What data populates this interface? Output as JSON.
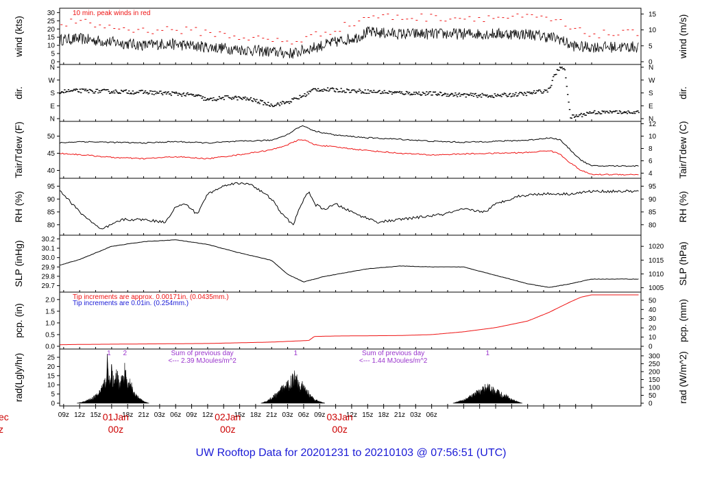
{
  "title": "UW Rooftop Data for 20201231  to  20210103 @ 07:56:51  (UTC)",
  "colors": {
    "black": "#000000",
    "red": "#ee1111",
    "blue": "#1a1ad6",
    "purple": "#9933cc",
    "day": "#cc0000"
  },
  "x_axis": {
    "hour_labels": [
      "09z",
      "12z",
      "15z",
      "18z",
      "21z",
      "03z",
      "06z",
      "09z",
      "12z",
      "15z",
      "18z",
      "21z",
      "03z",
      "06z",
      "09z",
      "12z",
      "15z",
      "18z",
      "21z",
      "03z",
      "06z"
    ],
    "day_labels": [
      {
        "top": "01Jan",
        "bottom": "00z"
      },
      {
        "top": "02Jan",
        "bottom": "00z"
      },
      {
        "top": "03Jan",
        "bottom": "00z"
      }
    ],
    "cut_off_left": {
      "top": "ec",
      "bottom": "z"
    }
  },
  "chart_data": [
    {
      "type": "line",
      "panel": "wind",
      "ylabel_left": "wind (kts)",
      "ylabel_right": "wind (m/s)",
      "yticks_left": [
        "0",
        "5",
        "10",
        "15",
        "20",
        "25",
        "30"
      ],
      "ylim_left": [
        0,
        31
      ],
      "yticks_right": [
        "0",
        "5",
        "10",
        "15"
      ],
      "annotation": "10 min. peak winds in red",
      "series": [
        {
          "name": "wind speed (kts)",
          "hours": [
            0,
            6,
            12,
            18,
            24,
            28,
            32,
            36,
            40,
            48,
            52,
            54,
            60,
            64,
            66,
            72,
            78,
            84,
            90,
            96,
            100,
            102,
            104,
            106,
            108
          ],
          "values": [
            13,
            13,
            14,
            12,
            10,
            11,
            10,
            9,
            8,
            6,
            5,
            7,
            12,
            15,
            18,
            17,
            17,
            17,
            17,
            17,
            15,
            14,
            10,
            9,
            9
          ]
        },
        {
          "name": "10 min. peak winds",
          "hours": [
            0,
            6,
            12,
            18,
            24,
            28,
            32,
            36,
            40,
            48,
            52,
            54,
            60,
            64,
            66,
            72,
            78,
            84,
            90,
            96,
            100,
            102,
            104,
            106,
            108
          ],
          "values": [
            22,
            23,
            24,
            21,
            19,
            20,
            19,
            18,
            16,
            13,
            12,
            14,
            20,
            24,
            28,
            27,
            27,
            27,
            27,
            27,
            26,
            24,
            20,
            18,
            17
          ]
        }
      ]
    },
    {
      "type": "scatter",
      "panel": "direction",
      "ylabel_left": "dir.",
      "ylabel_right": "dir.",
      "ytick_labels": [
        "N",
        "E",
        "S",
        "W",
        "N"
      ],
      "ylim": [
        0,
        360
      ],
      "series": [
        {
          "name": "wind direction (deg)",
          "hours": [
            0,
            6,
            12,
            18,
            24,
            30,
            34,
            36,
            40,
            44,
            48,
            51,
            54,
            56,
            60,
            66,
            72,
            78,
            84,
            90,
            96,
            100,
            101,
            102,
            103,
            104,
            106,
            108
          ],
          "values": [
            175,
            185,
            195,
            190,
            185,
            175,
            160,
            130,
            150,
            135,
            95,
            115,
            160,
            205,
            200,
            190,
            180,
            175,
            165,
            160,
            175,
            200,
            300,
            355,
            350,
            10,
            25,
            45
          ]
        }
      ]
    },
    {
      "type": "line",
      "panel": "temperature",
      "ylabel_left": "Tair/Tdew (F)",
      "ylabel_right": "Tair/Tdew (C)",
      "yticks_left": [
        "40",
        "45",
        "50"
      ],
      "ylim_left": [
        38.5,
        53.5
      ],
      "yticks_right": [
        "4",
        "6",
        "8",
        "10",
        "12"
      ],
      "series": [
        {
          "name": "Tair (F)",
          "hours": [
            0,
            6,
            12,
            18,
            24,
            30,
            36,
            42,
            48,
            51,
            53,
            54,
            56,
            60,
            66,
            72,
            78,
            84,
            90,
            96,
            100,
            102,
            104,
            106,
            108
          ],
          "values": [
            47,
            47.8,
            48.4,
            48.2,
            48,
            48.4,
            48,
            48.5,
            48.8,
            50.5,
            52.5,
            53,
            51.5,
            50.3,
            49.5,
            49.1,
            48.5,
            48.2,
            48.5,
            48.8,
            49.5,
            49,
            46,
            43,
            41.3
          ]
        },
        {
          "name": "Tdew (F)",
          "hours": [
            0,
            6,
            12,
            18,
            24,
            30,
            36,
            42,
            48,
            51,
            53,
            54,
            56,
            60,
            66,
            72,
            78,
            84,
            90,
            96,
            100,
            102,
            104,
            106,
            108
          ],
          "values": [
            45,
            45.2,
            44.6,
            43.8,
            43.4,
            44,
            43.4,
            44.6,
            46,
            47.5,
            48.8,
            49,
            47.5,
            46.8,
            45.8,
            45,
            44.5,
            44.8,
            45,
            45.2,
            45.8,
            44.8,
            42.2,
            40,
            38.8
          ]
        }
      ]
    },
    {
      "type": "line",
      "panel": "relative-humidity",
      "ylabel_left": "RH (%)",
      "ylabel_right": "RH (%)",
      "yticks": [
        "80",
        "85",
        "90",
        "95"
      ],
      "ylim": [
        77,
        97
      ],
      "series": [
        {
          "name": "RH (%)",
          "hours": [
            0,
            4,
            8,
            12,
            16,
            20,
            24,
            28,
            30,
            32,
            34,
            36,
            40,
            44,
            48,
            50,
            52,
            54,
            55,
            56,
            58,
            60,
            64,
            68,
            72,
            76,
            80,
            84,
            88,
            90,
            94,
            98,
            104,
            108
          ],
          "values": [
            92,
            91,
            94,
            85,
            78,
            82,
            82,
            81,
            87,
            88,
            84,
            92,
            96,
            96,
            90,
            84,
            80,
            90,
            93,
            88,
            86,
            88,
            84,
            81,
            82,
            83,
            84,
            86,
            85,
            88,
            91,
            92,
            92,
            93
          ]
        }
      ]
    },
    {
      "type": "line",
      "panel": "sea-level-pressure",
      "ylabel_left": "SLP (inHg)",
      "ylabel_right": "SLP (hPa)",
      "yticks_left": [
        "29.7",
        "29.8",
        "29.9",
        "30.0",
        "30.1",
        "30.2"
      ],
      "ylim_left": [
        29.66,
        30.21
      ],
      "yticks_right": [
        "1005",
        "1010",
        "1015",
        "1020"
      ],
      "series": [
        {
          "name": "SLP (inHg)",
          "hours": [
            0,
            6,
            12,
            18,
            24,
            30,
            36,
            42,
            48,
            51,
            54,
            58,
            66,
            72,
            78,
            84,
            90,
            96,
            100,
            104,
            108
          ],
          "values": [
            29.83,
            29.88,
            29.98,
            30.12,
            30.17,
            30.19,
            30.14,
            30.05,
            29.97,
            29.82,
            29.74,
            29.8,
            29.88,
            29.91,
            29.9,
            29.9,
            29.81,
            29.72,
            29.68,
            29.72,
            29.77
          ]
        }
      ]
    },
    {
      "type": "area",
      "panel": "precipitation",
      "ylabel_left": "pcp. (in)",
      "ylabel_right": "pcp. (mm)",
      "yticks_left": [
        "0.0",
        "0.5",
        "1.0",
        "1.5",
        "2.0"
      ],
      "ylim_left": [
        0,
        2.2
      ],
      "yticks_right": [
        "0",
        "10",
        "20",
        "30",
        "40",
        "50"
      ],
      "annotations": [
        {
          "text": "Tip increments are approx. 0.00171in. (0.0435mm.)",
          "color": "red"
        },
        {
          "text": "Tip increments are 0.01in. (0.254mm.)",
          "color": "blue"
        }
      ],
      "series": [
        {
          "name": "accumulated precipitation (in)",
          "hours": [
            0,
            6,
            12,
            24,
            36,
            48,
            52,
            55,
            56,
            60,
            72,
            78,
            84,
            90,
            96,
            100,
            104,
            106,
            108
          ],
          "values": [
            0,
            0.06,
            0.08,
            0.1,
            0.12,
            0.18,
            0.22,
            0.25,
            0.42,
            0.44,
            0.46,
            0.5,
            0.62,
            0.8,
            1.08,
            1.45,
            1.9,
            2.1,
            2.2
          ]
        }
      ]
    },
    {
      "type": "area",
      "panel": "solar-radiation",
      "ylabel_left": "rad(Lgly/hr)",
      "ylabel_right": "rad (W/m^2)",
      "yticks_left": [
        "0",
        "5",
        "10",
        "15",
        "20",
        "25"
      ],
      "ylim_left": [
        0,
        28
      ],
      "yticks_right": [
        "0",
        "50",
        "100",
        "150",
        "200",
        "250",
        "300"
      ],
      "day_markers": [
        {
          "hour": 17.5,
          "label": "1"
        },
        {
          "hour": 20.5,
          "label": "2"
        },
        {
          "hour": 52.5,
          "label": "1"
        },
        {
          "hour": 88.5,
          "label": "1"
        }
      ],
      "annotations": [
        {
          "line1": "Sum of previous day",
          "line2": "<--- 2.39 MJoules/m^2",
          "hour": 35
        },
        {
          "line1": "Sum of previous day",
          "line2": "<--- 1.44 MJoules/m^2",
          "hour": 70.8
        }
      ],
      "series": [
        {
          "name": "solar radiation (Lgly/hr)",
          "hours": [
            11.5,
            13,
            14.5,
            15.5,
            16,
            16.5,
            17,
            17.3,
            17.6,
            18,
            18.5,
            19,
            19.5,
            20,
            20.5,
            21,
            21.5,
            22,
            22.5,
            23,
            24,
            25
          ],
          "values": [
            0,
            1,
            3,
            5,
            8,
            10,
            14,
            28,
            9,
            18,
            10,
            16,
            11,
            14,
            18,
            9,
            12,
            6,
            5,
            3,
            1,
            0
          ]
        },
        {
          "name": "solar radiation day 2",
          "hours": [
            46,
            47,
            48,
            49,
            50,
            51,
            51.8,
            52.5,
            53.2,
            54,
            54.8,
            55.5,
            56,
            57,
            58
          ],
          "values": [
            0,
            1,
            3,
            5,
            8,
            10,
            13,
            16,
            11,
            9,
            6,
            4,
            2,
            1,
            0
          ]
        },
        {
          "name": "solar radiation day 3",
          "hours": [
            82,
            84,
            85.5,
            86.5,
            87.5,
            88.3,
            89,
            90,
            91,
            92,
            93,
            94,
            95
          ],
          "values": [
            0,
            2,
            4,
            6,
            7,
            10,
            8,
            7,
            5,
            4,
            2,
            1,
            0
          ]
        }
      ]
    }
  ]
}
